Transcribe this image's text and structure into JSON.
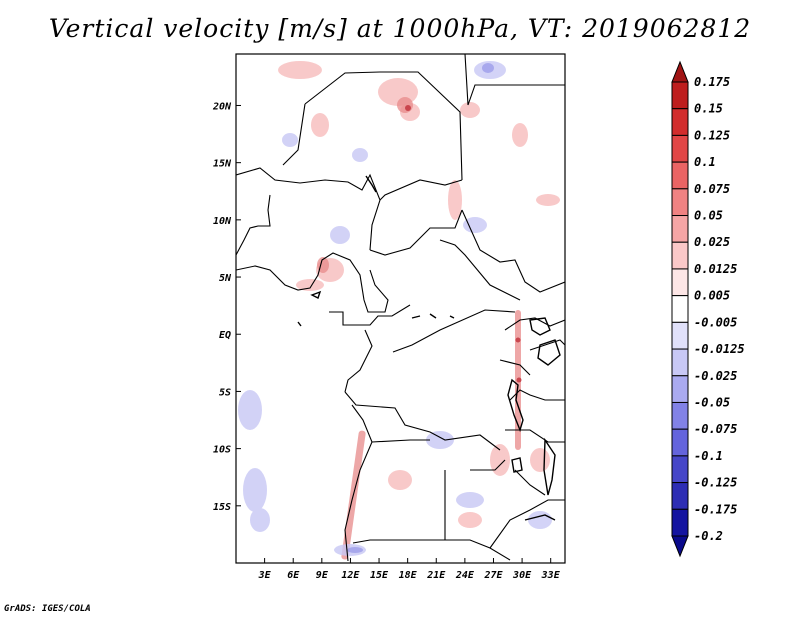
{
  "title": "Vertical velocity [m/s] at 1000hPa, VT: 2019062812",
  "footer": "GrADS: IGES/COLA",
  "map": {
    "lon_range": [
      0,
      34.5
    ],
    "lat_range": [
      -20,
      24.5
    ],
    "x_ticks": [
      {
        "lon": 3,
        "label": "3E"
      },
      {
        "lon": 6,
        "label": "6E"
      },
      {
        "lon": 9,
        "label": "9E"
      },
      {
        "lon": 12,
        "label": "12E"
      },
      {
        "lon": 15,
        "label": "15E"
      },
      {
        "lon": 18,
        "label": "18E"
      },
      {
        "lon": 21,
        "label": "21E"
      },
      {
        "lon": 24,
        "label": "24E"
      },
      {
        "lon": 27,
        "label": "27E"
      },
      {
        "lon": 30,
        "label": "30E"
      },
      {
        "lon": 33,
        "label": "33E"
      }
    ],
    "y_ticks": [
      {
        "lat": 20,
        "label": "20N"
      },
      {
        "lat": 15,
        "label": "15N"
      },
      {
        "lat": 10,
        "label": "10N"
      },
      {
        "lat": 5,
        "label": "5N"
      },
      {
        "lat": 0,
        "label": "EQ"
      },
      {
        "lat": -5,
        "label": "5S"
      },
      {
        "lat": -10,
        "label": "10S"
      },
      {
        "lat": -15,
        "label": "15S"
      }
    ]
  },
  "colorbar": {
    "labels": [
      "0.175",
      "0.15",
      "0.125",
      "0.1",
      "0.075",
      "0.05",
      "0.025",
      "0.0125",
      "0.005",
      "-0.005",
      "-0.0125",
      "-0.025",
      "-0.05",
      "-0.075",
      "-0.1",
      "-0.125",
      "-0.175",
      "-0.2"
    ],
    "colors": [
      "#a01414",
      "#be1e1e",
      "#d22d2d",
      "#e14646",
      "#ea6464",
      "#f08282",
      "#f5a5a5",
      "#fac8c8",
      "#fde6e6",
      "#ffffff",
      "#e1e1fa",
      "#c8c8f5",
      "#aaaaf0",
      "#8282e6",
      "#6464dc",
      "#4646c8",
      "#2d2db4",
      "#1414a0",
      "#0a0a8c"
    ]
  }
}
